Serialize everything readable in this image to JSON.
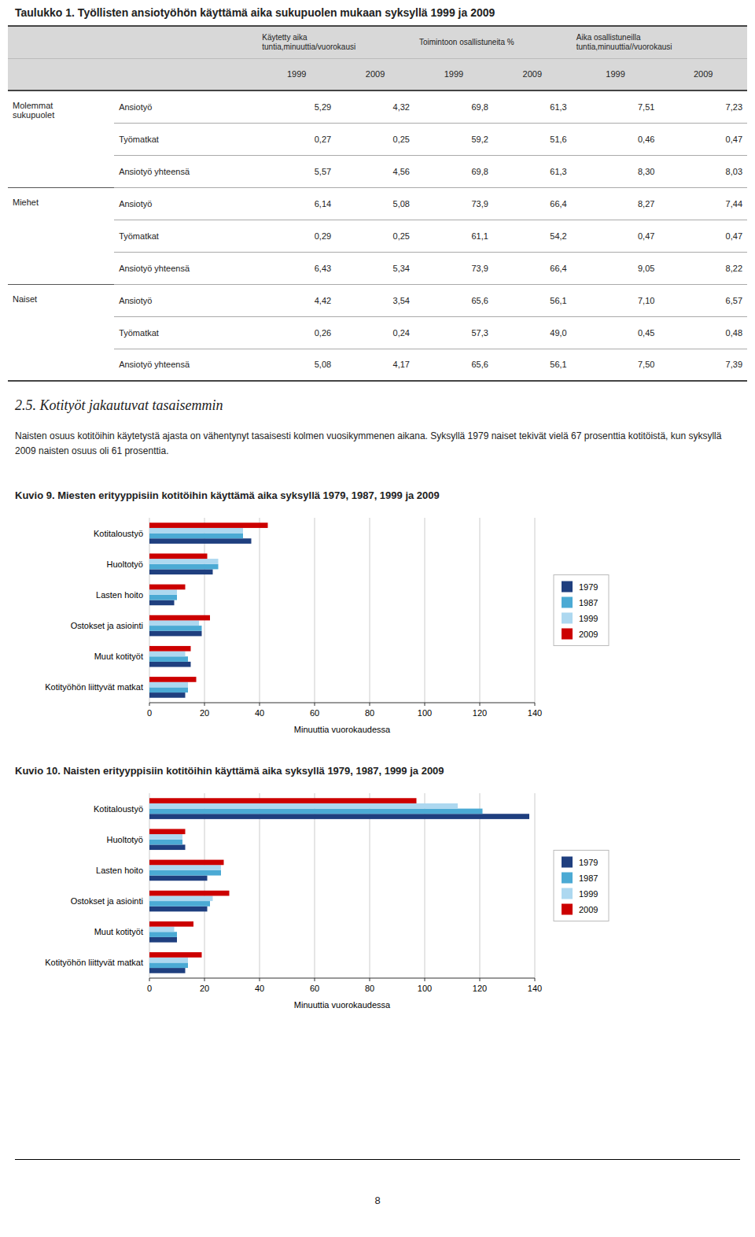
{
  "bg_color": "#ffffff",
  "header_bg": "#D8D8D8",
  "title": "Taulukko 1. Työllisten ansiotyöhön käyttämä aika sukupuolen mukaan syksyllä 1999 ja 2009",
  "table": {
    "column_groups": [
      {
        "label": "Käytetty aika\ntuntia,minuuttia/vuorokausi",
        "years": [
          "1999",
          "2009"
        ]
      },
      {
        "label": "Toimintoon osallistuneita %",
        "years": [
          "1999",
          "2009"
        ]
      },
      {
        "label": "Aika osallistuneilla\ntuntia,minuuttia//vuorokausi",
        "years": [
          "1999",
          "2009"
        ]
      }
    ],
    "row_groups": [
      {
        "group": "Molemmat\nsukupuolet",
        "rows": [
          {
            "label": "Ansiotyö",
            "vals": [
              "5,29",
              "4,32",
              "69,8",
              "61,3",
              "7,51",
              "7,23"
            ]
          },
          {
            "label": "Työmatkat",
            "vals": [
              "0,27",
              "0,25",
              "59,2",
              "51,6",
              "0,46",
              "0,47"
            ]
          },
          {
            "label": "Ansiotyö yhteensä",
            "vals": [
              "5,57",
              "4,56",
              "69,8",
              "61,3",
              "8,30",
              "8,03"
            ]
          }
        ]
      },
      {
        "group": "Miehet",
        "rows": [
          {
            "label": "Ansiotyö",
            "vals": [
              "6,14",
              "5,08",
              "73,9",
              "66,4",
              "8,27",
              "7,44"
            ]
          },
          {
            "label": "Työmatkat",
            "vals": [
              "0,29",
              "0,25",
              "61,1",
              "54,2",
              "0,47",
              "0,47"
            ]
          },
          {
            "label": "Ansiotyö yhteensä",
            "vals": [
              "6,43",
              "5,34",
              "73,9",
              "66,4",
              "9,05",
              "8,22"
            ]
          }
        ]
      },
      {
        "group": "Naiset",
        "rows": [
          {
            "label": "Ansiotyö",
            "vals": [
              "4,42",
              "3,54",
              "65,6",
              "56,1",
              "7,10",
              "6,57"
            ]
          },
          {
            "label": "Työmatkat",
            "vals": [
              "0,26",
              "0,24",
              "57,3",
              "49,0",
              "0,45",
              "0,48"
            ]
          },
          {
            "label": "Ansiotyö yhteensä",
            "vals": [
              "5,08",
              "4,17",
              "65,6",
              "56,1",
              "7,50",
              "7,39"
            ]
          }
        ]
      }
    ]
  },
  "section_title": "2.5. Kotityöt jakautuvat tasaisemmin",
  "section_text": "Naisten osuus kotitöihin käytetystä ajasta on vähentynyt tasaisesti kolmen vuosikymmenen aikana. Syksyllä 1979 naiset tekivät vielä 67 prosenttia kotitöistä, kun syksyllä 2009 naisten osuus oli 61 prosenttia.",
  "chart_data": [
    {
      "type": "bar",
      "orientation": "horizontal",
      "title": "Kuvio 9. Miesten erityyppisiin kotitöihin käyttämä aika syksyllä 1979, 1987, 1999 ja 2009",
      "categories": [
        "Kotitaloustyö",
        "Huoltotyö",
        "Lasten hoito",
        "Ostokset ja asiointi",
        "Muut kotityöt",
        "Kotityöhön liittyvät matkat"
      ],
      "series": [
        {
          "name": "1979",
          "color": "#1F3F7F",
          "values": [
            37,
            23,
            9,
            19,
            15,
            13
          ]
        },
        {
          "name": "1987",
          "color": "#4BAAD4",
          "values": [
            34,
            25,
            10,
            19,
            14,
            14
          ]
        },
        {
          "name": "1999",
          "color": "#ADD8F0",
          "values": [
            34,
            25,
            10,
            18,
            13,
            14
          ]
        },
        {
          "name": "2009",
          "color": "#CC0000",
          "values": [
            43,
            21,
            13,
            22,
            15,
            17
          ]
        }
      ],
      "xlabel": "Minuuttia vuorokaudessa",
      "xlim": [
        0,
        140
      ],
      "xticks": [
        0,
        20,
        40,
        60,
        80,
        100,
        120,
        140
      ],
      "grid": true,
      "legend": "right"
    },
    {
      "type": "bar",
      "orientation": "horizontal",
      "title": "Kuvio 10. Naisten erityyppisiin kotitöihin käyttämä aika syksyllä 1979, 1987, 1999 ja 2009",
      "categories": [
        "Kotitaloustyö",
        "Huoltotyö",
        "Lasten hoito",
        "Ostokset ja asiointi",
        "Muut kotityöt",
        "Kotityöhön liittyvät matkat"
      ],
      "series": [
        {
          "name": "1979",
          "color": "#1F3F7F",
          "values": [
            138,
            13,
            21,
            21,
            10,
            13
          ]
        },
        {
          "name": "1987",
          "color": "#4BAAD4",
          "values": [
            121,
            12,
            26,
            22,
            10,
            14
          ]
        },
        {
          "name": "1999",
          "color": "#ADD8F0",
          "values": [
            112,
            12,
            26,
            23,
            9,
            14
          ]
        },
        {
          "name": "2009",
          "color": "#CC0000",
          "values": [
            97,
            13,
            27,
            29,
            16,
            19
          ]
        }
      ],
      "xlabel": "Minuuttia vuorokaudessa",
      "xlim": [
        0,
        140
      ],
      "xticks": [
        0,
        20,
        40,
        60,
        80,
        100,
        120,
        140
      ],
      "grid": true,
      "legend": "right"
    }
  ],
  "page_number": "8"
}
